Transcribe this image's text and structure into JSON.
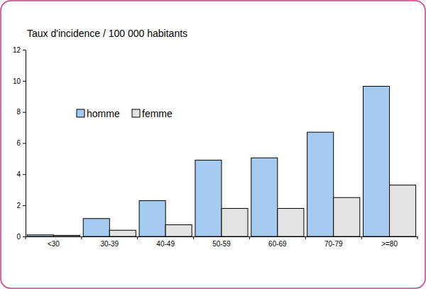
{
  "chart_data": {
    "type": "bar",
    "title": "Taux d'incidence / 100 000 habitants",
    "categories": [
      "<30",
      "30-39",
      "40-49",
      "50-59",
      "60-69",
      "70-79",
      ">=80"
    ],
    "series": [
      {
        "name": "homme",
        "color": "#a6cbf0",
        "values": [
          0.1,
          1.15,
          2.3,
          4.9,
          5.05,
          6.7,
          9.65
        ]
      },
      {
        "name": "femme",
        "color": "#e3e3e3",
        "values": [
          0.07,
          0.4,
          0.75,
          1.8,
          1.8,
          2.5,
          3.3
        ]
      }
    ],
    "ylim": [
      0,
      12
    ],
    "yticks": [
      0,
      2,
      4,
      6,
      8,
      10,
      12
    ],
    "grid": false,
    "legend": "upper left"
  }
}
